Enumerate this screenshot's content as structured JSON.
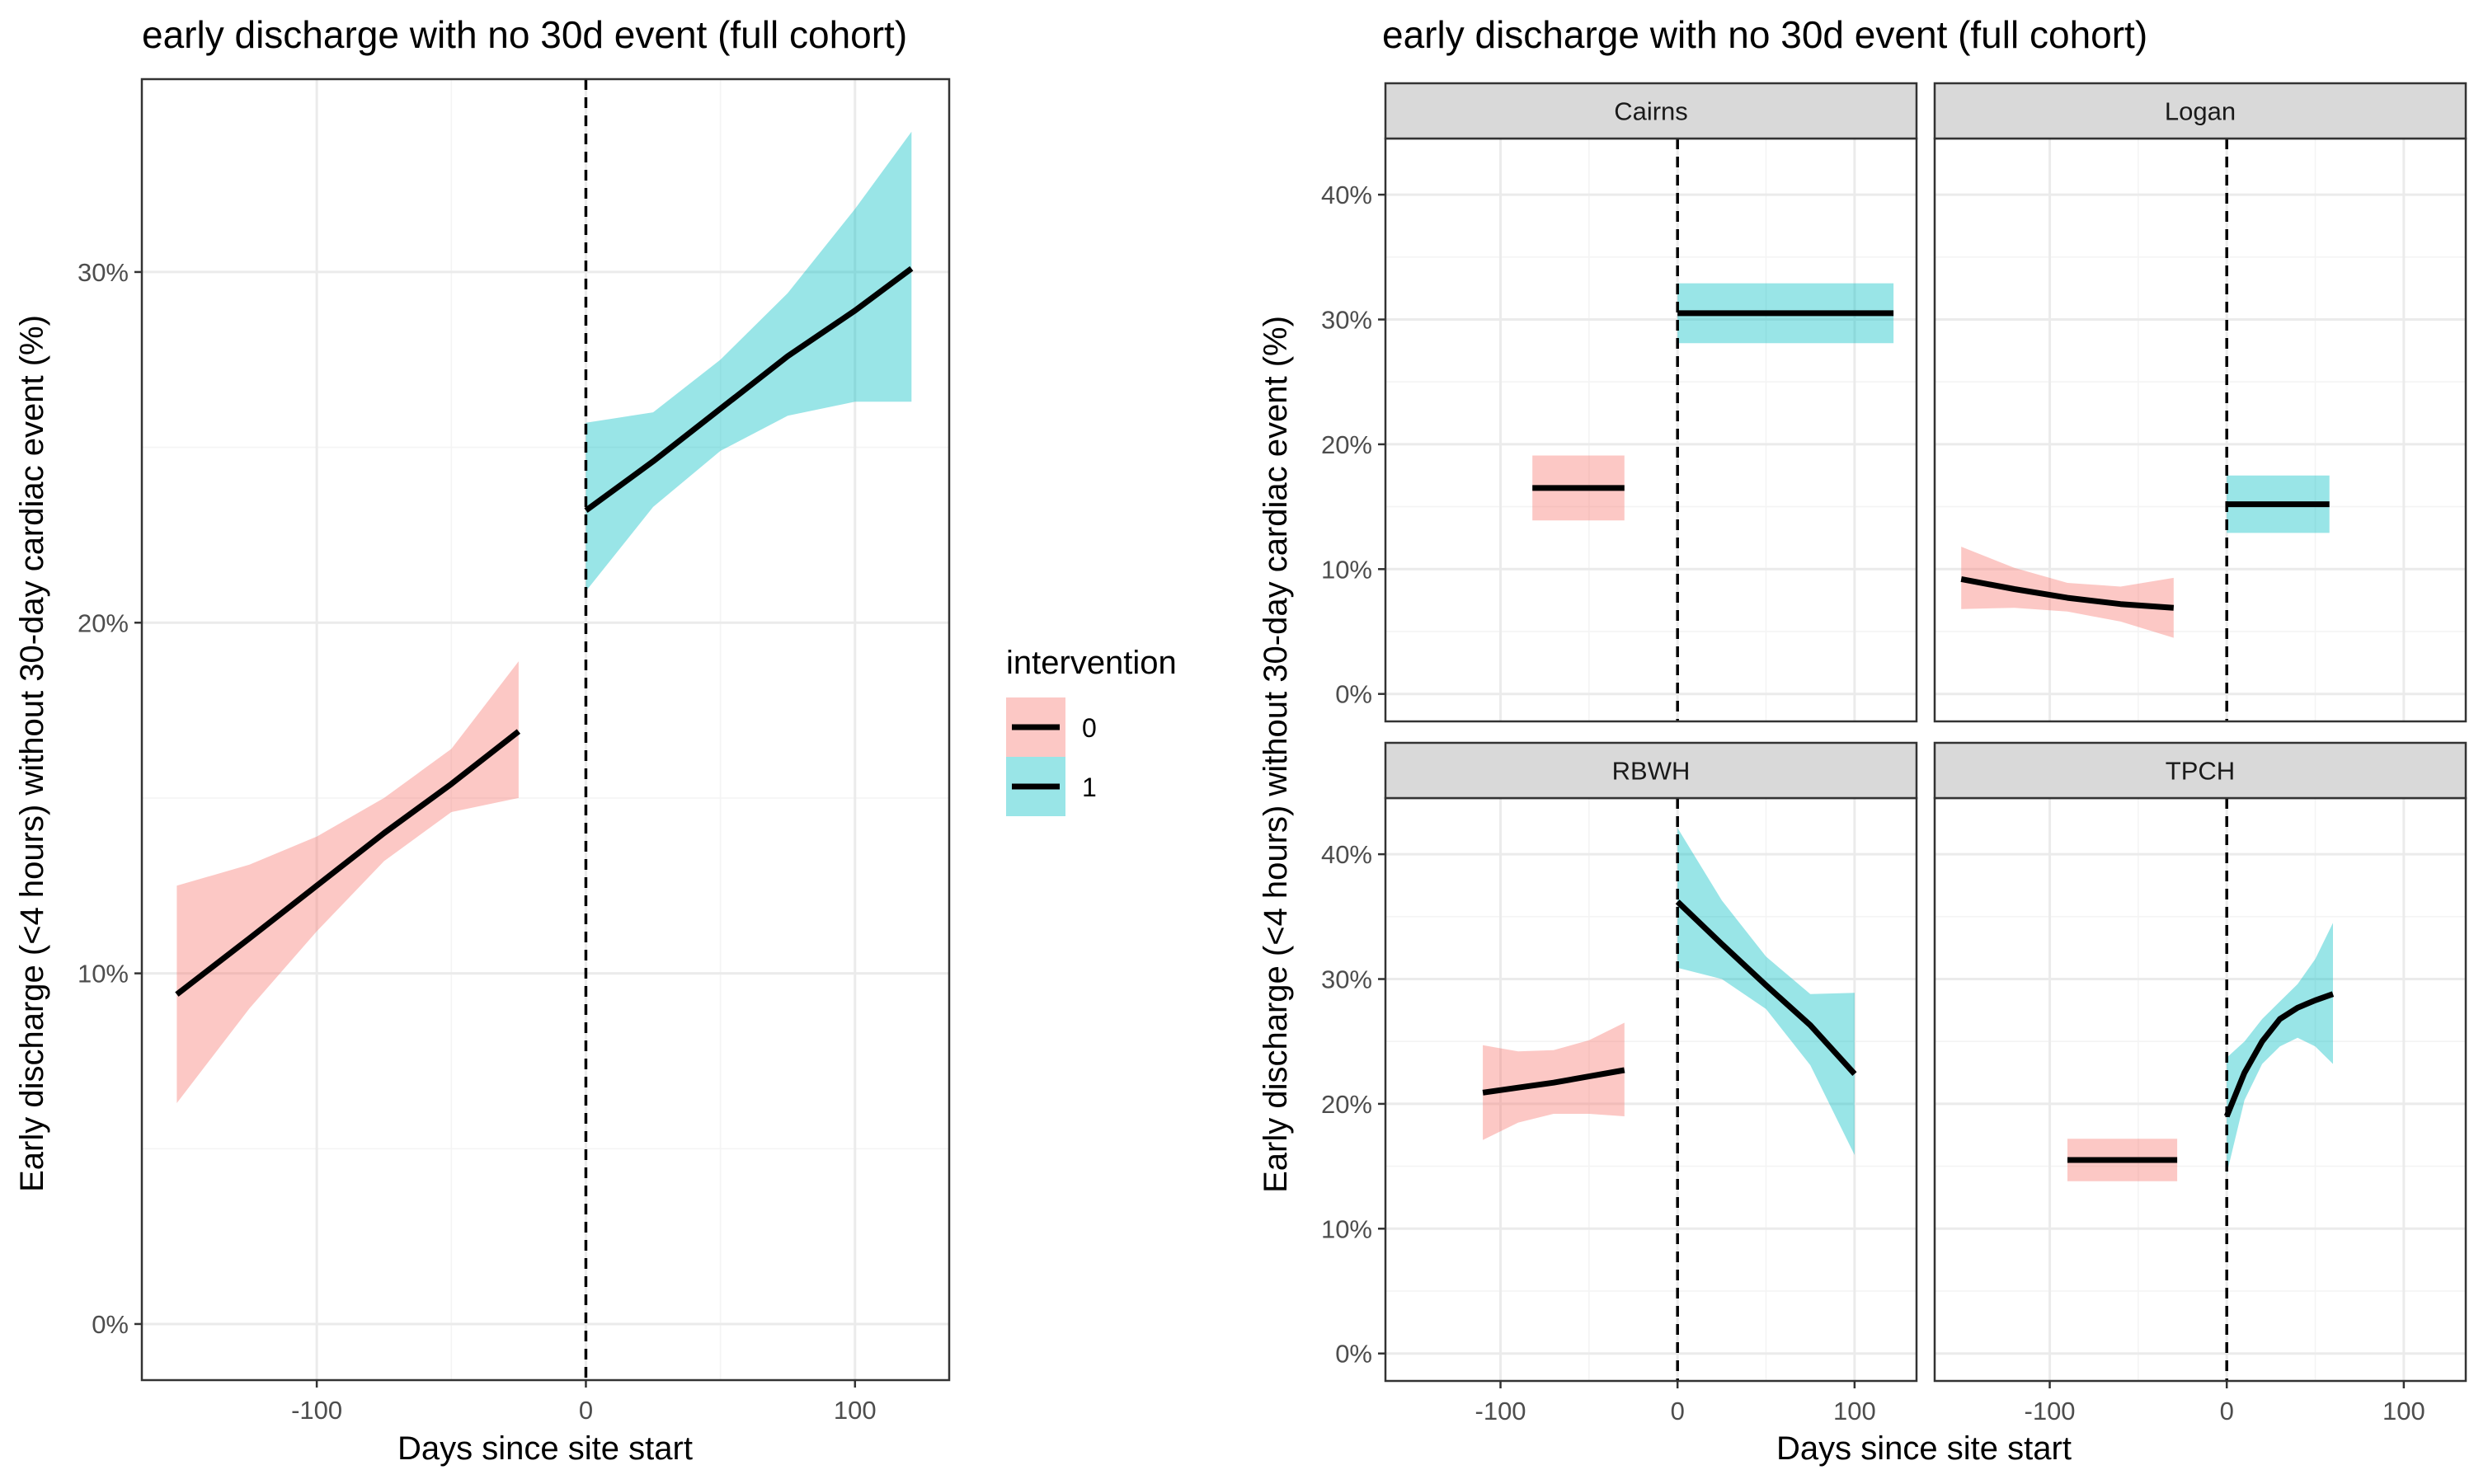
{
  "colors": {
    "background": "#ffffff",
    "panel_border": "#333333",
    "grid_major": "#ebebeb",
    "grid_minor": "#f4f4f4",
    "strip_fill": "#d9d9d9",
    "tick_text": "#4d4d4d",
    "line": "#000000",
    "vline": "#000000",
    "ribbon": {
      "0": "#F8766D",
      "1": "#00BFC4"
    },
    "ribbon_alpha": 0.4
  },
  "legend": {
    "title": "intervention",
    "entries": [
      {
        "level": "0",
        "label": "0"
      },
      {
        "level": "1",
        "label": "1"
      }
    ]
  },
  "chart_data": [
    {
      "type": "line",
      "title": "early discharge with no 30d event (full cohort)",
      "xlabel": "Days since site start",
      "ylabel": "Early discharge (<4 hours) without 30-day cardiac event (%)",
      "xlim": [
        -165,
        135
      ],
      "ylim": [
        -1.6,
        35.5
      ],
      "x_ticks": [
        -100,
        0,
        100
      ],
      "x_tick_labels": [
        "-100",
        "0",
        "100"
      ],
      "y_ticks": [
        0,
        10,
        20,
        30
      ],
      "y_tick_labels": [
        "0%",
        "10%",
        "20%",
        "30%"
      ],
      "grid": true,
      "vline_x": 0,
      "legend_position": "right",
      "series": [
        {
          "group": "0",
          "x": [
            -152,
            -125,
            -100,
            -75,
            -50,
            -25
          ],
          "y": [
            9.4,
            11.0,
            12.5,
            14.0,
            15.4,
            16.9
          ],
          "lower": [
            6.3,
            9.0,
            11.2,
            13.2,
            14.6,
            15.0
          ],
          "upper": [
            12.5,
            13.1,
            13.9,
            15.0,
            16.4,
            18.9
          ]
        },
        {
          "group": "1",
          "x": [
            0,
            25,
            50,
            75,
            100,
            121
          ],
          "y": [
            23.2,
            24.6,
            26.1,
            27.6,
            28.9,
            30.1
          ],
          "lower": [
            20.9,
            23.3,
            24.9,
            25.9,
            26.3,
            26.3
          ],
          "upper": [
            25.7,
            26.0,
            27.5,
            29.4,
            31.8,
            34.0
          ]
        }
      ]
    },
    {
      "type": "line",
      "title": "early discharge with no 30d event (full cohort)",
      "xlabel": "Days since site start",
      "ylabel": "Early discharge (<4 hours) without 30-day cardiac event (%)",
      "xlim": [
        -165,
        135
      ],
      "ylim": [
        -2.2,
        44.5
      ],
      "x_ticks": [
        -100,
        0,
        100
      ],
      "x_tick_labels": [
        "-100",
        "0",
        "100"
      ],
      "y_ticks": [
        0,
        10,
        20,
        30,
        40
      ],
      "y_tick_labels": [
        "0%",
        "10%",
        "20%",
        "30%",
        "40%"
      ],
      "grid": true,
      "vline_x": 0,
      "facets": [
        {
          "label": "Cairns",
          "series": [
            {
              "group": "0",
              "x": [
                -82,
                -30
              ],
              "y": [
                16.5,
                16.5
              ],
              "lower": [
                13.9,
                13.9
              ],
              "upper": [
                19.1,
                19.1
              ]
            },
            {
              "group": "1",
              "x": [
                0,
                122
              ],
              "y": [
                30.5,
                30.5
              ],
              "lower": [
                28.1,
                28.1
              ],
              "upper": [
                32.9,
                32.9
              ]
            }
          ]
        },
        {
          "label": "Logan",
          "series": [
            {
              "group": "0",
              "x": [
                -150,
                -120,
                -90,
                -60,
                -30
              ],
              "y": [
                9.2,
                8.4,
                7.7,
                7.2,
                6.9
              ],
              "lower": [
                6.8,
                6.9,
                6.6,
                5.8,
                4.5
              ],
              "upper": [
                11.8,
                10.1,
                8.9,
                8.6,
                9.3
              ]
            },
            {
              "group": "1",
              "x": [
                0,
                58
              ],
              "y": [
                15.2,
                15.2
              ],
              "lower": [
                12.9,
                12.9
              ],
              "upper": [
                17.5,
                17.5
              ]
            }
          ]
        },
        {
          "label": "RBWH",
          "series": [
            {
              "group": "0",
              "x": [
                -110,
                -90,
                -70,
                -50,
                -30
              ],
              "y": [
                20.9,
                21.3,
                21.7,
                22.2,
                22.7
              ],
              "lower": [
                17.1,
                18.5,
                19.2,
                19.2,
                19.0
              ],
              "upper": [
                24.7,
                24.2,
                24.3,
                25.1,
                26.5
              ]
            },
            {
              "group": "1",
              "x": [
                0,
                25,
                50,
                75,
                100
              ],
              "y": [
                36.2,
                32.8,
                29.5,
                26.3,
                22.4
              ],
              "lower": [
                30.9,
                30.0,
                27.6,
                23.1,
                15.9
              ],
              "upper": [
                42.1,
                36.3,
                31.8,
                28.8,
                28.9
              ]
            }
          ]
        },
        {
          "label": "TPCH",
          "series": [
            {
              "group": "0",
              "x": [
                -90,
                -28
              ],
              "y": [
                15.5,
                15.5
              ],
              "lower": [
                13.8,
                13.8
              ],
              "upper": [
                17.2,
                17.2
              ]
            },
            {
              "group": "1",
              "x": [
                0,
                10,
                20,
                30,
                40,
                50,
                60
              ],
              "y": [
                19.0,
                22.5,
                25.0,
                26.8,
                27.7,
                28.3,
                28.8
              ],
              "lower": [
                14.4,
                20.3,
                23.2,
                24.6,
                25.3,
                24.6,
                23.2
              ],
              "upper": [
                23.7,
                25.0,
                26.8,
                28.2,
                29.6,
                31.6,
                34.5
              ]
            }
          ]
        }
      ]
    }
  ]
}
